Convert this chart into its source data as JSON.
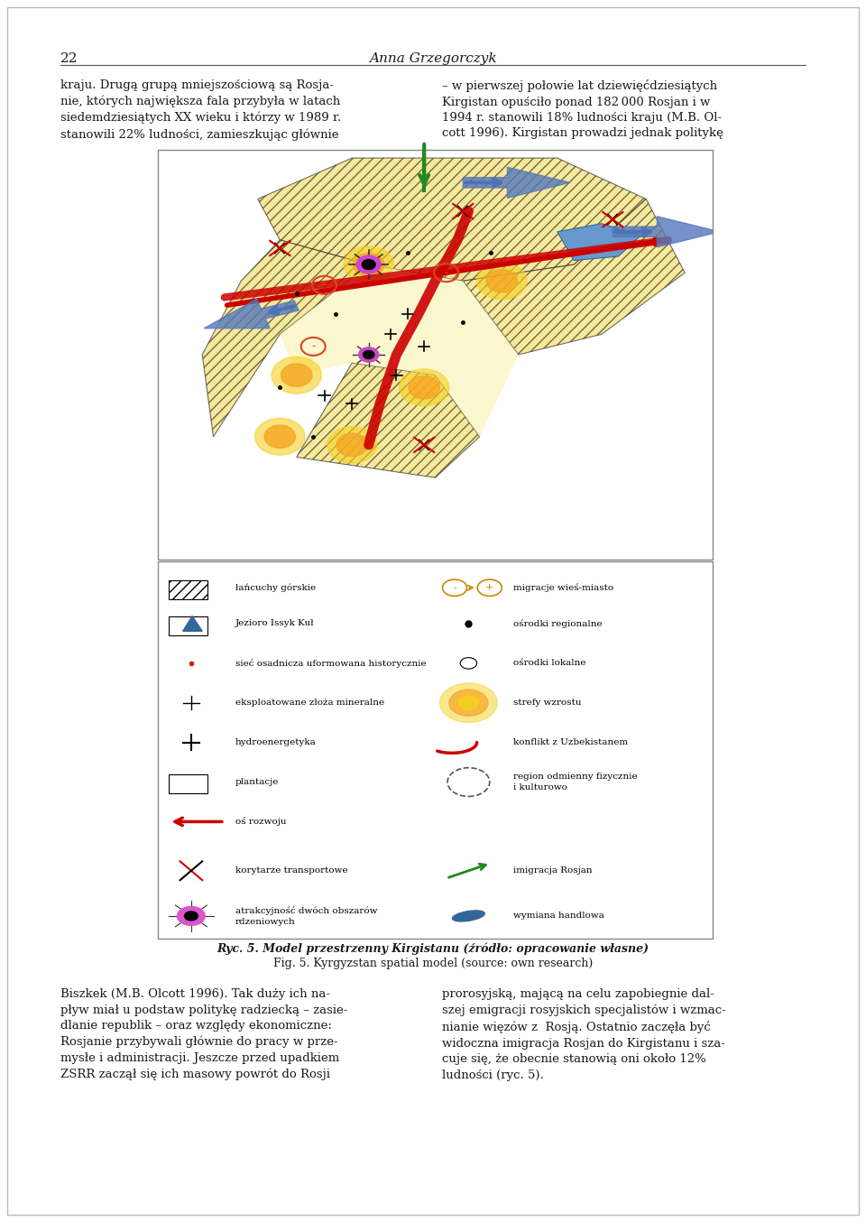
{
  "page_number": "22",
  "header_author": "Anna Grzegorczyk",
  "bg_color": "#ffffff",
  "text_color": "#1a1a1a",
  "para1_left": "kraju. Drugą grupą mniejszościową są Rosja-\nnie, których największa fala przybyła w latach\nsiedemdziesiątych XX wieku i którzy w 1989 r.\nstanowili 22% ludności, zamieszkując głównie",
  "para1_right": "– w pierwszej połowie lat dziewięćdziesiątych\nKirgistan opuściło ponad 182 000 Rosjan i w\n1994 r. stanowili 18% ludności kraju (M.B. Ol-\ncott 1996). Kirgistan prowadzi jednak politykę",
  "caption_pl": "Ryc. 5. Model przestrzenny Kirgistanu (źródło: opracowanie własne)",
  "caption_en": "Fig. 5. Kyrgyzstan spatial model (source: own research)",
  "para2_left": "Biszkek (M.B. Olcott 1996). Tak duży ich na-\npływ miał u podstaw politykę radziecką – zasie-\ndlanie republik – oraz względy ekonomiczne:\nRosjanie przybywali głównie do pracy w prze-\nmysłe i administracji. Jeszcze przed upadkiem\nZSRR zaczął się ich masowy powrót do Rosji",
  "para2_right": "prorosyjską, mającą na celu zapobiegnie dal-\nszej emigracji rosyjskich specjalistów i wzmac-\nnianie więzów z  Rosją. Ostatnio zaczęła być\nwidoczna imigracja Rosjan do Kirgistanu i sza-\ncuje się, że obecnie stanowią oni około 12%\nludności (ryc. 5).",
  "legend_items_left": [
    {
      "symbol": "hatch_rect",
      "text": "łańcuchy górskie"
    },
    {
      "symbol": "issyk_kul",
      "text": "Jezioro Issyk Kuł"
    },
    {
      "symbol": "dot_red",
      "text": "sieć osadnicza uformowana historycznie"
    },
    {
      "symbol": "plus_small",
      "text": "eksploatowane złoża mineralne"
    },
    {
      "symbol": "plus_large",
      "text": "hydroenergetyka"
    },
    {
      "symbol": "hlines_rect",
      "text": "plantacje"
    },
    {
      "symbol": "red_arrow_left",
      "text": "oś rozwoju"
    },
    {
      "symbol": "transport_cross",
      "text": "korytarze transportowe"
    },
    {
      "symbol": "attraction_node",
      "text": "atrakcyjność dwóch obszarów\nrdzeniowych"
    }
  ],
  "legend_items_right": [
    {
      "symbol": "migration_arrow",
      "text": "migracje wieś-miasto"
    },
    {
      "symbol": "dot_black_large",
      "text": "ośrodki regionalne"
    },
    {
      "symbol": "dot_black_small",
      "text": "ośrodki lokalne"
    },
    {
      "symbol": "glow_circle",
      "text": "strefy wzrostu"
    },
    {
      "symbol": "red_curve",
      "text": "konflikt z Uzbekistanem"
    },
    {
      "symbol": "dashed_circle",
      "text": "region odmienny fizycznie\ni kulturowo"
    },
    {
      "symbol": "green_arrow",
      "text": "imigracja Rosjan"
    },
    {
      "symbol": "blue_shape",
      "text": "wymiana handlowa"
    }
  ]
}
